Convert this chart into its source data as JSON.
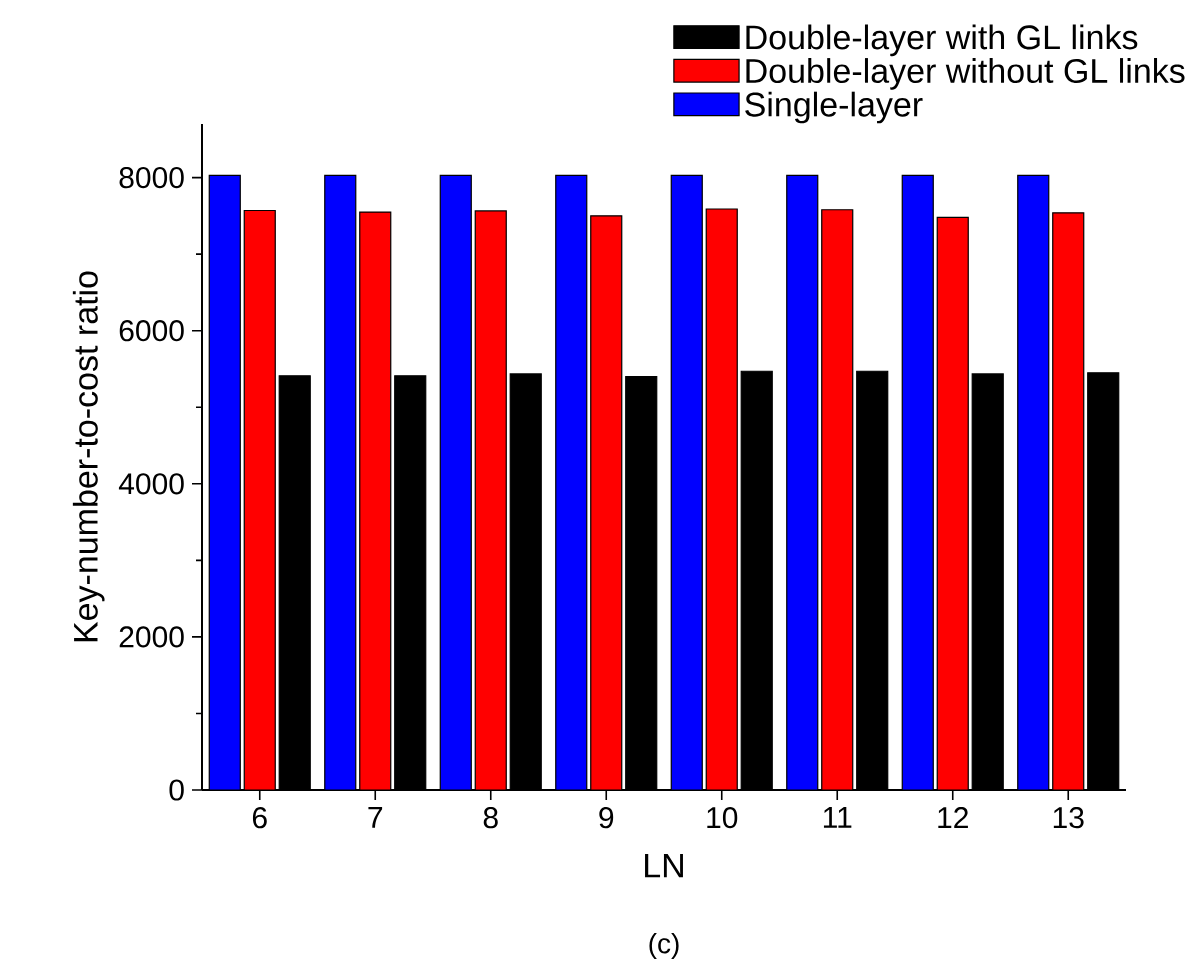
{
  "chart_data": {
    "type": "bar",
    "xlabel": "LN",
    "ylabel": "Key-number-to-cost ratio",
    "annotations": [
      "(c)"
    ],
    "categories": [
      "6",
      "7",
      "8",
      "9",
      "10",
      "11",
      "12",
      "13"
    ],
    "series": [
      {
        "name": "Single-layer",
        "color": "#0000ff",
        "values": [
          8030,
          8030,
          8030,
          8030,
          8030,
          8030,
          8030,
          8030
        ]
      },
      {
        "name": "Double-layer without GL links",
        "color": "#ff0000",
        "values": [
          7570,
          7550,
          7565,
          7500,
          7590,
          7580,
          7480,
          7540
        ]
      },
      {
        "name": "Double-layer with GL links",
        "color": "#000000",
        "values": [
          5410,
          5410,
          5435,
          5400,
          5470,
          5470,
          5435,
          5450
        ]
      }
    ],
    "ylim": [
      0,
      8700
    ],
    "yticks": [
      0,
      2000,
      4000,
      6000,
      8000
    ],
    "legend": "top right",
    "grid": false
  }
}
